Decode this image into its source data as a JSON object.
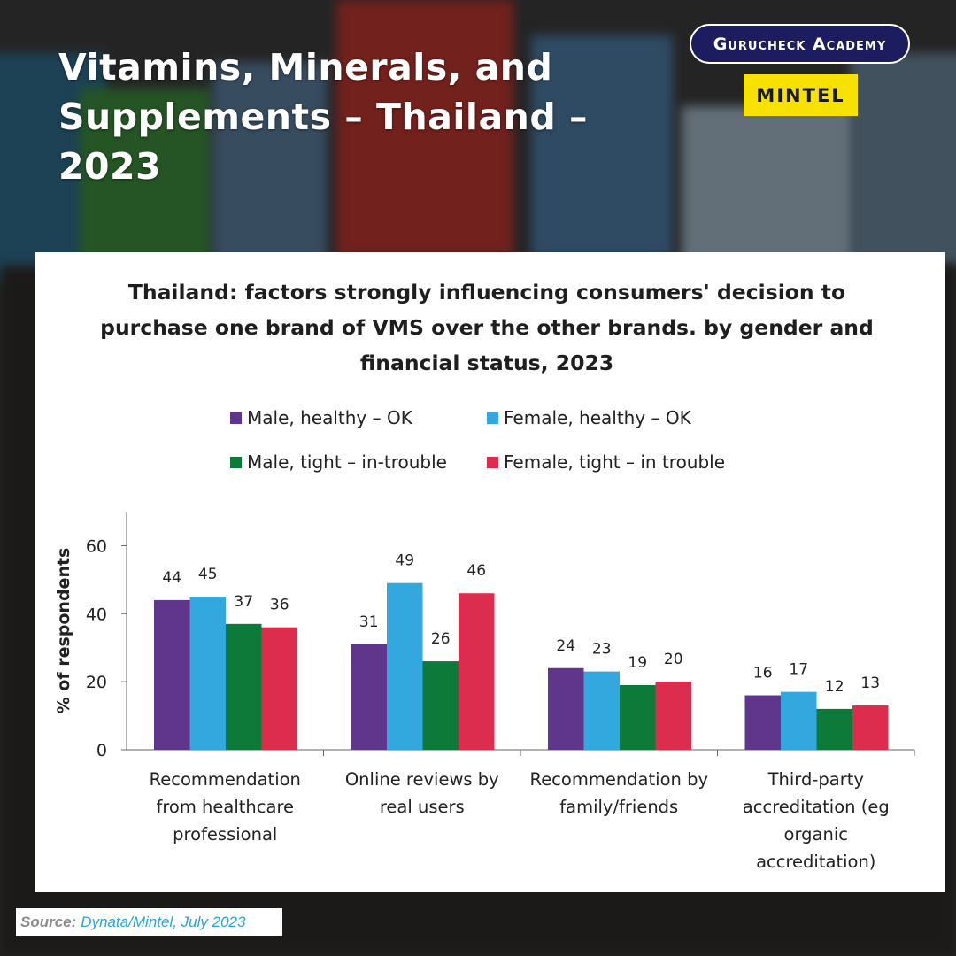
{
  "page": {
    "title": "Vitamins, Minerals, and Supplements – Thailand – 2023",
    "brand_badge": "Gurucheck Academy",
    "logo": "MINTEL",
    "source_label": "Source:",
    "source_text": "Dynata/Mintel, July 2023"
  },
  "colors": {
    "male_healthy": "#60368c",
    "female_healthy": "#33a8df",
    "male_tight": "#0d7a3a",
    "female_tight": "#dc2d4f",
    "badge_bg": "#1c1c5e",
    "logo_bg": "#f7e100"
  },
  "chart_data": {
    "type": "bar",
    "title": "Thailand: factors strongly influencing consumers' decision to purchase one brand of VMS over the other brands. by gender and financial status, 2023",
    "xlabel": "",
    "ylabel": "% of respondents",
    "ylim": [
      0,
      70
    ],
    "yticks": [
      0,
      20,
      40,
      60
    ],
    "grid": false,
    "legend_position": "top",
    "categories": [
      "Recommendation from healthcare professional",
      "Online reviews by real users",
      "Recommendation by family/friends",
      "Third-party accreditation (eg organic accreditation)"
    ],
    "series": [
      {
        "name": "Male, healthy – OK",
        "color": "#60368c",
        "values": [
          44,
          31,
          24,
          16
        ]
      },
      {
        "name": "Female, healthy – OK",
        "color": "#33a8df",
        "values": [
          45,
          49,
          23,
          17
        ]
      },
      {
        "name": "Male, tight – in-trouble",
        "color": "#0d7a3a",
        "values": [
          37,
          26,
          19,
          12
        ]
      },
      {
        "name": "Female, tight – in trouble",
        "color": "#dc2d4f",
        "values": [
          36,
          46,
          20,
          13
        ]
      }
    ]
  }
}
